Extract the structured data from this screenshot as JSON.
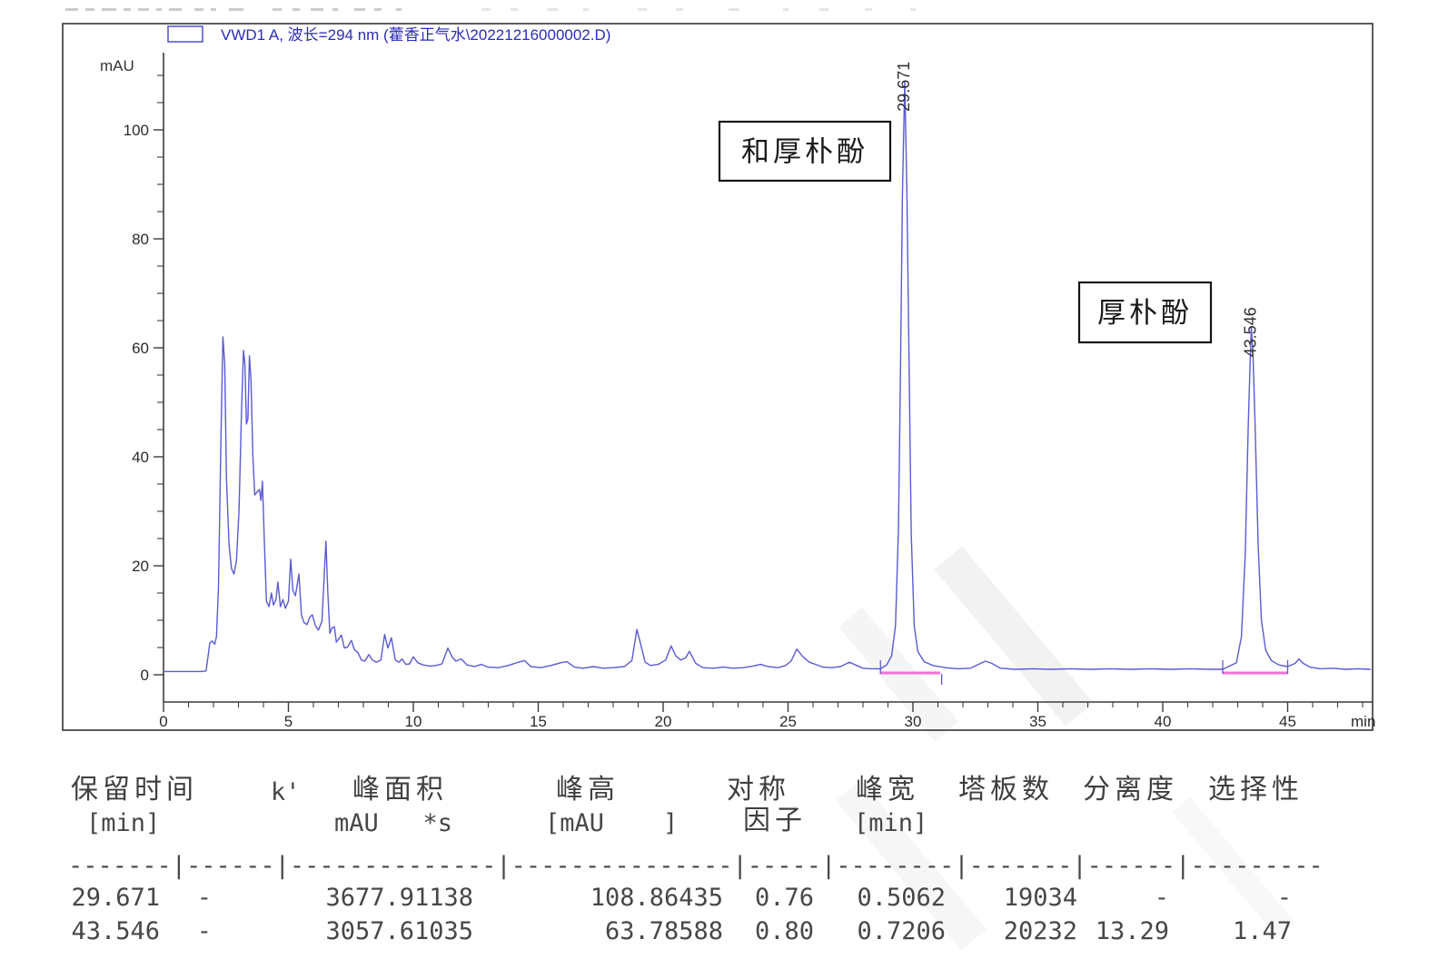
{
  "chart_data": {
    "type": "line",
    "legend_label": "VWD1 A, 波长=294 nm (藿香正气水\\20221216000002.D)",
    "ylabel": "mAU",
    "xlabel": "min",
    "xlim": [
      0,
      48.3
    ],
    "ylim": [
      -5,
      114
    ],
    "x_tick_labels": [
      0,
      5,
      10,
      15,
      20,
      25,
      30,
      35,
      40,
      45
    ],
    "x_minor_step": 1,
    "y_tick_labels": [
      0,
      20,
      40,
      60,
      80,
      100
    ],
    "y_minor_step": 5,
    "grid": false,
    "legend_position": "top-left-inside",
    "trace_color": "#5a5ad2",
    "legend_color": "#2b2bbe",
    "integration_color": "#ee72d8",
    "axis_color": "#3c3c3c",
    "series": [
      {
        "name": "VWD1 A",
        "points": [
          [
            0,
            0.6
          ],
          [
            0.5,
            0.6
          ],
          [
            1.0,
            0.6
          ],
          [
            1.5,
            0.6
          ],
          [
            1.7,
            0.7
          ],
          [
            1.78,
            3.2
          ],
          [
            1.85,
            5.8
          ],
          [
            1.95,
            6.2
          ],
          [
            2.05,
            5.6
          ],
          [
            2.12,
            7
          ],
          [
            2.2,
            16
          ],
          [
            2.3,
            44
          ],
          [
            2.38,
            62
          ],
          [
            2.45,
            57
          ],
          [
            2.52,
            36
          ],
          [
            2.62,
            24
          ],
          [
            2.72,
            19.5
          ],
          [
            2.82,
            18.5
          ],
          [
            2.92,
            21
          ],
          [
            3.02,
            30
          ],
          [
            3.12,
            48
          ],
          [
            3.2,
            59.5
          ],
          [
            3.26,
            57
          ],
          [
            3.32,
            46
          ],
          [
            3.38,
            47
          ],
          [
            3.44,
            58.5
          ],
          [
            3.5,
            54
          ],
          [
            3.58,
            40
          ],
          [
            3.65,
            33
          ],
          [
            3.74,
            33.5
          ],
          [
            3.84,
            34
          ],
          [
            3.9,
            32
          ],
          [
            3.96,
            35.5
          ],
          [
            4.04,
            24
          ],
          [
            4.12,
            13.5
          ],
          [
            4.22,
            12.5
          ],
          [
            4.32,
            15
          ],
          [
            4.4,
            12.8
          ],
          [
            4.5,
            13.8
          ],
          [
            4.58,
            17
          ],
          [
            4.68,
            12.5
          ],
          [
            4.78,
            13.8
          ],
          [
            4.88,
            12.2
          ],
          [
            5.0,
            13.5
          ],
          [
            5.09,
            21.2
          ],
          [
            5.18,
            15.5
          ],
          [
            5.28,
            14.5
          ],
          [
            5.42,
            18.5
          ],
          [
            5.52,
            11
          ],
          [
            5.62,
            9.6
          ],
          [
            5.74,
            9.2
          ],
          [
            5.86,
            10.6
          ],
          [
            5.96,
            11
          ],
          [
            6.08,
            9
          ],
          [
            6.2,
            8.2
          ],
          [
            6.34,
            9.8
          ],
          [
            6.5,
            24.5
          ],
          [
            6.58,
            15
          ],
          [
            6.66,
            7.6
          ],
          [
            6.74,
            8.6
          ],
          [
            6.84,
            8.8
          ],
          [
            6.92,
            6
          ],
          [
            7.02,
            6.6
          ],
          [
            7.12,
            7.3
          ],
          [
            7.24,
            4.9
          ],
          [
            7.37,
            5.1
          ],
          [
            7.52,
            6.3
          ],
          [
            7.64,
            4.6
          ],
          [
            7.78,
            4.1
          ],
          [
            7.92,
            2.7
          ],
          [
            8.06,
            2.5
          ],
          [
            8.22,
            3.7
          ],
          [
            8.36,
            2.7
          ],
          [
            8.52,
            2.3
          ],
          [
            8.7,
            2.7
          ],
          [
            8.85,
            7.4
          ],
          [
            8.98,
            4.9
          ],
          [
            9.12,
            6.8
          ],
          [
            9.28,
            2.7
          ],
          [
            9.42,
            2.3
          ],
          [
            9.55,
            2.9
          ],
          [
            9.7,
            1.9
          ],
          [
            9.85,
            2.0
          ],
          [
            10.0,
            3.3
          ],
          [
            10.18,
            2.2
          ],
          [
            10.4,
            1.8
          ],
          [
            10.65,
            1.6
          ],
          [
            10.9,
            1.7
          ],
          [
            11.15,
            2.0
          ],
          [
            11.38,
            4.9
          ],
          [
            11.55,
            3.3
          ],
          [
            11.7,
            2.5
          ],
          [
            11.92,
            2.9
          ],
          [
            12.15,
            1.8
          ],
          [
            12.45,
            1.5
          ],
          [
            12.72,
            1.9
          ],
          [
            13.0,
            1.4
          ],
          [
            13.4,
            1.3
          ],
          [
            13.8,
            1.7
          ],
          [
            14.2,
            2.3
          ],
          [
            14.45,
            2.6
          ],
          [
            14.7,
            1.5
          ],
          [
            15.1,
            1.3
          ],
          [
            15.5,
            1.7
          ],
          [
            15.9,
            2.2
          ],
          [
            16.15,
            2.4
          ],
          [
            16.45,
            1.4
          ],
          [
            16.8,
            1.2
          ],
          [
            17.2,
            1.5
          ],
          [
            17.6,
            1.2
          ],
          [
            18.0,
            1.3
          ],
          [
            18.45,
            1.5
          ],
          [
            18.75,
            2.6
          ],
          [
            18.95,
            8.3
          ],
          [
            19.1,
            5.6
          ],
          [
            19.28,
            2.3
          ],
          [
            19.5,
            1.7
          ],
          [
            19.8,
            1.9
          ],
          [
            20.1,
            2.7
          ],
          [
            20.32,
            5.3
          ],
          [
            20.5,
            3.5
          ],
          [
            20.7,
            2.7
          ],
          [
            20.9,
            3.1
          ],
          [
            21.05,
            4.3
          ],
          [
            21.3,
            2.1
          ],
          [
            21.6,
            1.3
          ],
          [
            22.0,
            1.2
          ],
          [
            22.4,
            1.4
          ],
          [
            22.8,
            1.2
          ],
          [
            23.2,
            1.3
          ],
          [
            23.6,
            1.6
          ],
          [
            23.9,
            1.9
          ],
          [
            24.2,
            1.5
          ],
          [
            24.6,
            1.3
          ],
          [
            24.9,
            1.7
          ],
          [
            25.12,
            2.5
          ],
          [
            25.35,
            4.7
          ],
          [
            25.6,
            3.3
          ],
          [
            25.85,
            2.3
          ],
          [
            26.1,
            1.9
          ],
          [
            26.4,
            1.4
          ],
          [
            26.75,
            1.3
          ],
          [
            27.1,
            1.5
          ],
          [
            27.45,
            2.3
          ],
          [
            27.7,
            1.8
          ],
          [
            28.0,
            1.2
          ],
          [
            28.3,
            1.1
          ],
          [
            28.7,
            1.1
          ],
          [
            28.95,
            1.8
          ],
          [
            29.15,
            3.5
          ],
          [
            29.3,
            9
          ],
          [
            29.42,
            27
          ],
          [
            29.5,
            56
          ],
          [
            29.58,
            88
          ],
          [
            29.671,
            108.86
          ],
          [
            29.76,
            88
          ],
          [
            29.85,
            55
          ],
          [
            29.93,
            26
          ],
          [
            30.05,
            9
          ],
          [
            30.2,
            4.2
          ],
          [
            30.45,
            2.4
          ],
          [
            30.8,
            1.7
          ],
          [
            31.3,
            1.3
          ],
          [
            31.8,
            1.1
          ],
          [
            32.3,
            1.2
          ],
          [
            32.9,
            2.5
          ],
          [
            33.15,
            2.1
          ],
          [
            33.5,
            1.2
          ],
          [
            34.1,
            1.0
          ],
          [
            34.8,
            1.1
          ],
          [
            35.5,
            1.0
          ],
          [
            36.3,
            1.1
          ],
          [
            37.1,
            1.0
          ],
          [
            37.9,
            1.1
          ],
          [
            38.7,
            1.0
          ],
          [
            39.5,
            1.1
          ],
          [
            40.3,
            1.0
          ],
          [
            41.1,
            1.1
          ],
          [
            41.9,
            1.0
          ],
          [
            42.4,
            1.0
          ],
          [
            42.95,
            2.2
          ],
          [
            43.15,
            7
          ],
          [
            43.3,
            22
          ],
          [
            43.42,
            45
          ],
          [
            43.5,
            58
          ],
          [
            43.546,
            63.79
          ],
          [
            43.62,
            58
          ],
          [
            43.7,
            45
          ],
          [
            43.82,
            24
          ],
          [
            43.95,
            10
          ],
          [
            44.12,
            4.5
          ],
          [
            44.35,
            2.6
          ],
          [
            44.65,
            1.8
          ],
          [
            45.0,
            1.5
          ],
          [
            45.3,
            2.1
          ],
          [
            45.45,
            2.9
          ],
          [
            45.62,
            2.1
          ],
          [
            45.9,
            1.4
          ],
          [
            46.3,
            1.1
          ],
          [
            46.8,
            1.2
          ],
          [
            47.3,
            1.0
          ],
          [
            47.8,
            1.1
          ],
          [
            48.3,
            1.0
          ]
        ]
      }
    ],
    "integration_baselines": [
      {
        "from": 28.7,
        "to": 31.1
      },
      {
        "from": 42.4,
        "to": 45.0
      }
    ],
    "integration_markers": [
      {
        "t": 28.7,
        "dir": "up"
      },
      {
        "t": 31.15,
        "dir": "down"
      },
      {
        "t": 42.4,
        "dir": "up"
      },
      {
        "t": 45.0,
        "dir": "up"
      }
    ],
    "peak_labels": [
      {
        "text": "29.671",
        "t": 29.671,
        "v": 108.86435
      },
      {
        "text": "43.546",
        "t": 43.546,
        "v": 63.78588
      }
    ],
    "annotations": [
      {
        "text": "和厚朴酚"
      },
      {
        "text": "厚朴酚"
      }
    ]
  },
  "table": {
    "headers_line1": [
      "保留时间",
      "k'",
      "峰面积",
      "峰高",
      "对称",
      "峰宽",
      "塔板数",
      "分离度",
      "选择性"
    ],
    "headers_line2": [
      "[min]",
      "",
      "mAU   *s",
      "[mAU    ]",
      "因子",
      "[min]",
      "",
      "",
      ""
    ],
    "separator": "-------|------|--------------|---------------|-----|--------|-------|------|---------",
    "rows": [
      [
        "29.671",
        "-",
        "3677.91138",
        "108.86435",
        "0.76",
        "0.5062",
        "19034",
        "-",
        "-"
      ],
      [
        "43.546",
        "-",
        "3057.61035",
        "63.78588",
        "0.80",
        "0.7206",
        "20232",
        "13.29",
        "1.47"
      ]
    ]
  }
}
